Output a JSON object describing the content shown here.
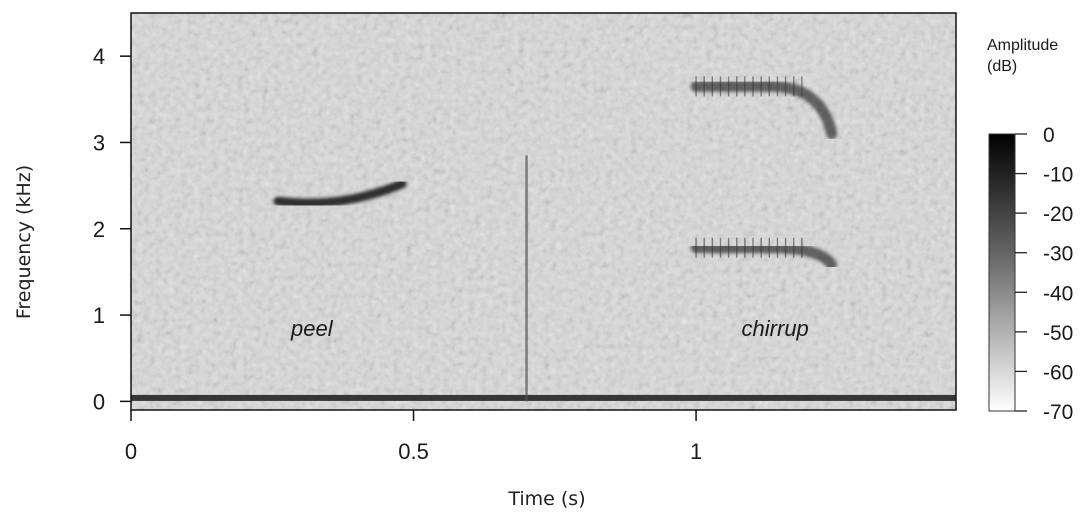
{
  "chart_data": {
    "type": "heatmap",
    "subtype": "spectrogram",
    "xlabel": "Time (s)",
    "ylabel": "Frequency (kHz)",
    "xlim": [
      0,
      1.46
    ],
    "ylim": [
      -0.1,
      4.5
    ],
    "x_ticks": [
      0,
      0.5,
      1
    ],
    "x_tick_labels": [
      "0",
      "0.5",
      "1"
    ],
    "y_ticks": [
      0,
      1,
      2,
      3,
      4
    ],
    "y_tick_labels": [
      "0",
      "1",
      "2",
      "3",
      "4"
    ],
    "colorbar": {
      "title_line1": "Amplitude",
      "title_line2": "(dB)",
      "ticks": [
        0,
        -10,
        -20,
        -30,
        -40,
        -50,
        -60,
        -70
      ],
      "tick_labels": [
        "0",
        "-10",
        "-20",
        "-30",
        "-40",
        "-50",
        "-60",
        "-70"
      ],
      "range": [
        -70,
        0
      ],
      "color_high": "#000000",
      "color_low": "#ffffff"
    },
    "annotations": [
      {
        "text": "peel",
        "x": 0.32,
        "y": 0.85
      },
      {
        "text": "chirrup",
        "x": 1.14,
        "y": 0.85
      }
    ],
    "calls": [
      {
        "name": "peel",
        "time_start": 0.26,
        "time_end": 0.48,
        "freq_start": 2.32,
        "freq_end": 2.52
      },
      {
        "name": "chirrup",
        "time_start": 1.0,
        "time_end": 1.24,
        "freq_start": 1.78,
        "freq_end": 1.58
      },
      {
        "name": "chirrup",
        "time_start": 1.0,
        "time_end": 1.24,
        "freq_start": 3.65,
        "freq_end": 3.1
      }
    ],
    "grid": false
  }
}
